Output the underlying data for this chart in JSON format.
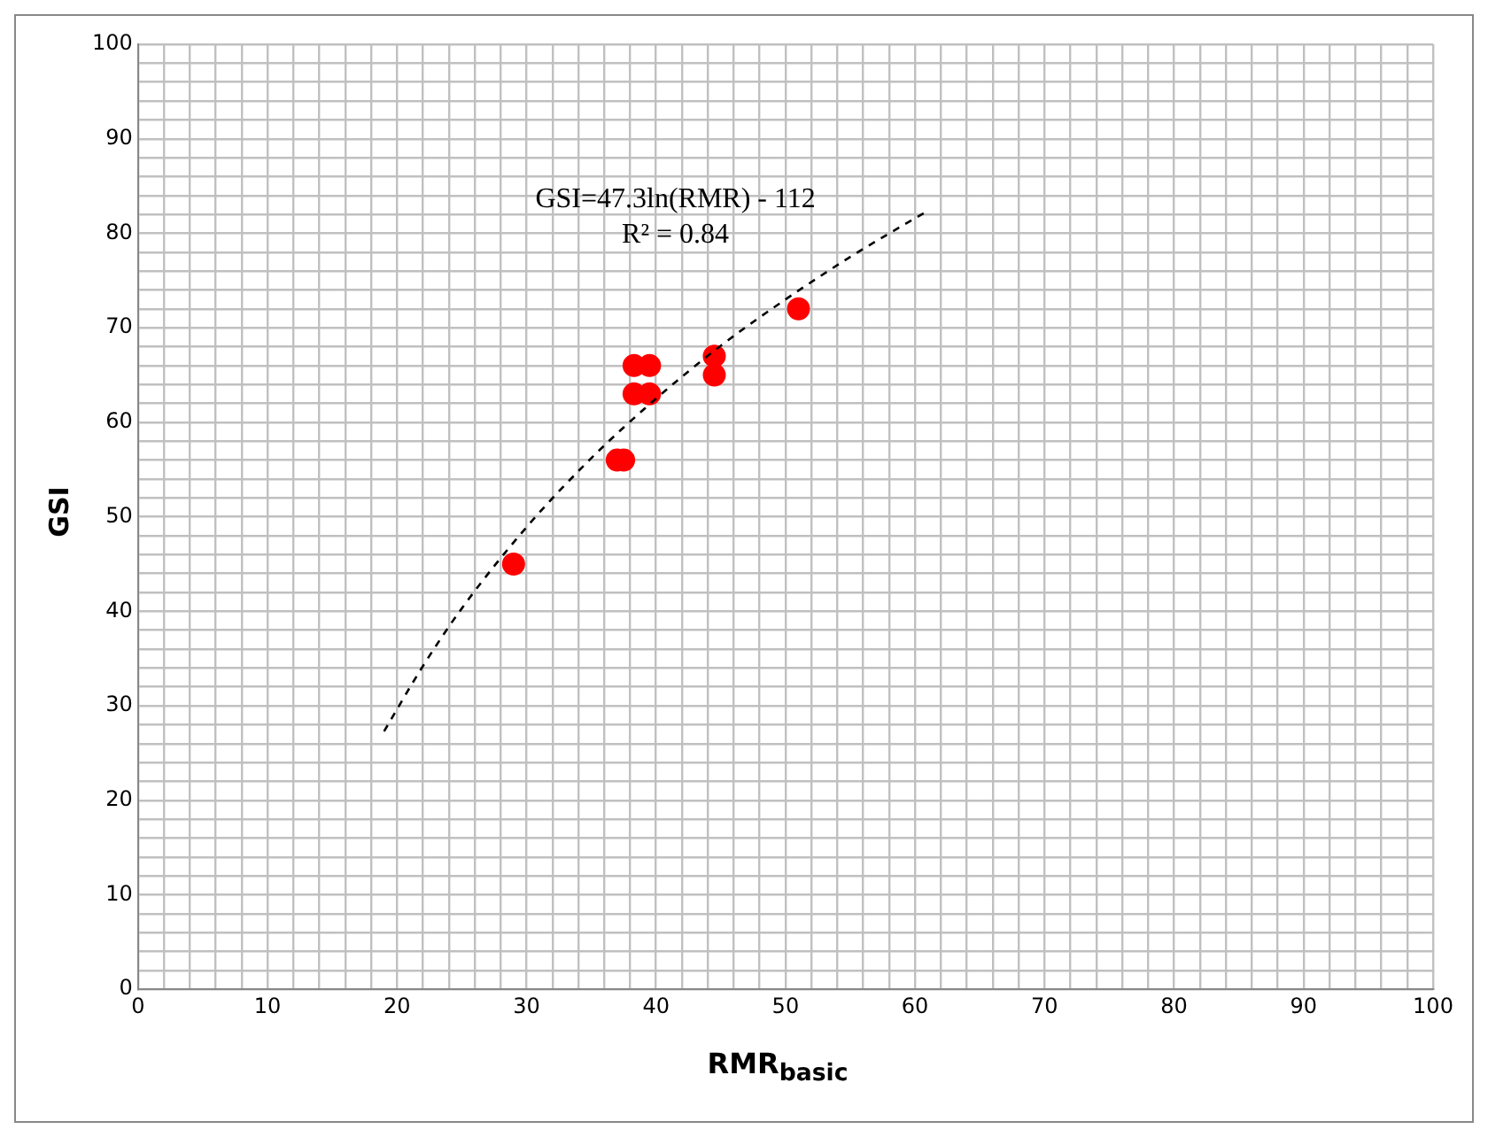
{
  "chart_data": {
    "type": "scatter",
    "xlabel": "RMR$_{basic}$",
    "ylabel": "GSI",
    "series": [
      {
        "color": "#ff0000",
        "marker": "circle",
        "x": [
          29,
          37,
          37.5,
          38.3,
          39.5,
          38.3,
          39.5,
          44.5,
          44.5,
          51
        ],
        "values": [
          45,
          56,
          56,
          63,
          63,
          66,
          66,
          67,
          65,
          72
        ]
      },
      {
        "type": "line",
        "color": "#000000",
        "line_style": "dashed",
        "marker": "none",
        "x": [
          19,
          22,
          25,
          30,
          35,
          40,
          45,
          50,
          55,
          61
        ],
        "values": [
          27.3,
          34.2,
          40.3,
          48.9,
          56.2,
          62.5,
          68.1,
          73.0,
          77.5,
          82.4
        ]
      }
    ],
    "annotations": [
      "GSI=47.3ln(RMR) - 112",
      "R² = 0.84"
    ],
    "xlim": [
      0,
      100
    ],
    "ylim": [
      0,
      100
    ],
    "xticks": [
      0,
      {
        "value": 2,
        "label": null
      },
      {
        "value": 4,
        "label": null
      },
      {
        "value": 6,
        "label": null
      },
      {
        "value": 8,
        "label": null
      },
      10,
      {
        "value": 12,
        "label": null
      },
      {
        "value": 14,
        "label": null
      },
      {
        "value": 16,
        "label": null
      },
      {
        "value": 18,
        "label": null
      },
      20,
      {
        "value": 22,
        "label": null
      },
      {
        "value": 24,
        "label": null
      },
      {
        "value": 26,
        "label": null
      },
      {
        "value": 28,
        "label": null
      },
      30,
      {
        "value": 32,
        "label": null
      },
      {
        "value": 34,
        "label": null
      },
      {
        "value": 36,
        "label": null
      },
      {
        "value": 38,
        "label": null
      },
      40,
      {
        "value": 42,
        "label": null
      },
      {
        "value": 44,
        "label": null
      },
      {
        "value": 46,
        "label": null
      },
      {
        "value": 48,
        "label": null
      },
      50,
      {
        "value": 52,
        "label": null
      },
      {
        "value": 54,
        "label": null
      },
      {
        "value": 56,
        "label": null
      },
      {
        "value": 58,
        "label": null
      },
      60,
      {
        "value": 62,
        "label": null
      },
      {
        "value": 64,
        "label": null
      },
      {
        "value": 66,
        "label": null
      },
      {
        "value": 68,
        "label": null
      },
      70,
      {
        "value": 72,
        "label": null
      },
      {
        "value": 74,
        "label": null
      },
      {
        "value": 76,
        "label": null
      },
      {
        "value": 78,
        "label": null
      },
      80,
      {
        "value": 82,
        "label": null
      },
      {
        "value": 84,
        "label": null
      },
      {
        "value": 86,
        "label": null
      },
      {
        "value": 88,
        "label": null
      },
      90,
      {
        "value": 92,
        "label": null
      },
      {
        "value": 94,
        "label": null
      },
      {
        "value": 96,
        "label": null
      },
      {
        "value": 98,
        "label": null
      },
      100
    ],
    "yticks": [
      0,
      {
        "value": 2,
        "label": null
      },
      {
        "value": 4,
        "label": null
      },
      {
        "value": 6,
        "label": null
      },
      {
        "value": 8,
        "label": null
      },
      10,
      {
        "value": 12,
        "label": null
      },
      {
        "value": 14,
        "label": null
      },
      {
        "value": 16,
        "label": null
      },
      {
        "value": 18,
        "label": null
      },
      20,
      {
        "value": 22,
        "label": null
      },
      {
        "value": 24,
        "label": null
      },
      {
        "value": 26,
        "label": null
      },
      {
        "value": 28,
        "label": null
      },
      30,
      {
        "value": 32,
        "label": null
      },
      {
        "value": 34,
        "label": null
      },
      {
        "value": 36,
        "label": null
      },
      {
        "value": 38,
        "label": null
      },
      40,
      {
        "value": 42,
        "label": null
      },
      {
        "value": 44,
        "label": null
      },
      {
        "value": 46,
        "label": null
      },
      {
        "value": 48,
        "label": null
      },
      50,
      {
        "value": 52,
        "label": null
      },
      {
        "value": 54,
        "label": null
      },
      {
        "value": 56,
        "label": null
      },
      {
        "value": 58,
        "label": null
      },
      60,
      {
        "value": 62,
        "label": null
      },
      {
        "value": 64,
        "label": null
      },
      {
        "value": 66,
        "label": null
      },
      {
        "value": 68,
        "label": null
      },
      70,
      {
        "value": 72,
        "label": null
      },
      {
        "value": 74,
        "label": null
      },
      {
        "value": 76,
        "label": null
      },
      {
        "value": 78,
        "label": null
      },
      80,
      {
        "value": 82,
        "label": null
      },
      {
        "value": 84,
        "label": null
      },
      {
        "value": 86,
        "label": null
      },
      {
        "value": 88,
        "label": null
      },
      90,
      {
        "value": 92,
        "label": null
      },
      {
        "value": 94,
        "label": null
      },
      {
        "value": 96,
        "label": null
      },
      {
        "value": 98,
        "label": null
      },
      100
    ],
    "grid": true,
    "legend": false
  }
}
